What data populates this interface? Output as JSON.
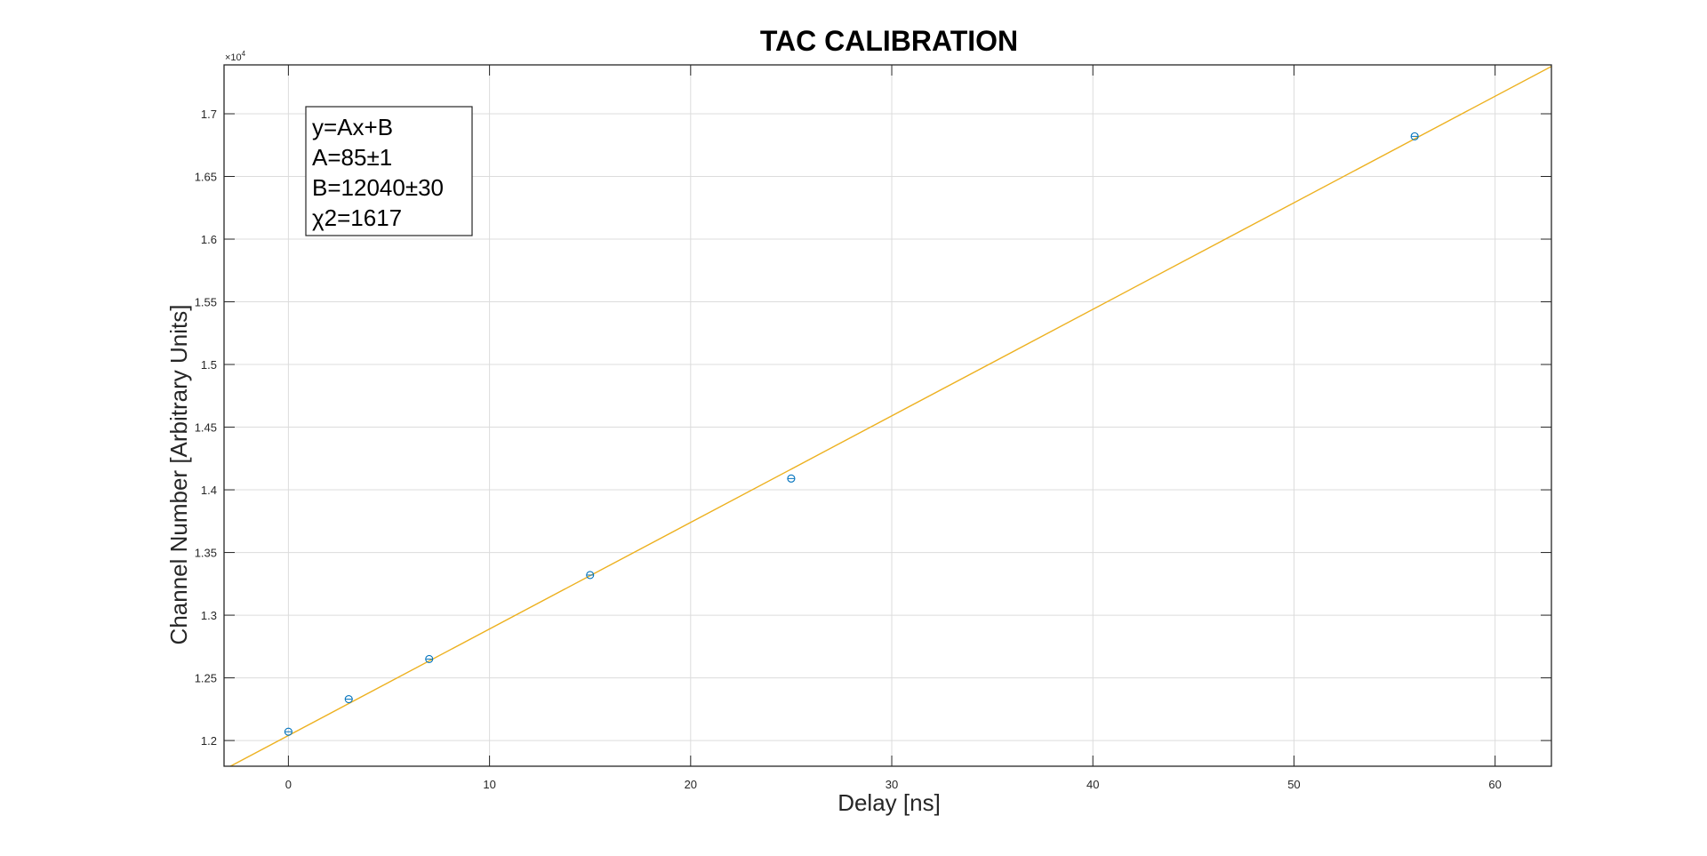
{
  "chart_data": {
    "type": "scatter",
    "title": "TAC CALIBRATION",
    "xlabel": "Delay [ns]",
    "ylabel": "Channel Number [Arbitrary Units]",
    "y_exponent_label": "×10",
    "y_exponent_power": "4",
    "xlim": [
      -3.2,
      62.8
    ],
    "ylim": [
      11795,
      17390
    ],
    "x_ticks": [
      0,
      10,
      20,
      30,
      40,
      50,
      60
    ],
    "x_tick_labels": [
      "0",
      "10",
      "20",
      "30",
      "40",
      "50",
      "60"
    ],
    "y_ticks": [
      12000,
      12500,
      13000,
      13500,
      14000,
      14500,
      15000,
      15500,
      16000,
      16500,
      17000
    ],
    "y_tick_labels": [
      "1.2",
      "1.25",
      "1.3",
      "1.35",
      "1.4",
      "1.45",
      "1.5",
      "1.55",
      "1.6",
      "1.65",
      "1.7"
    ],
    "grid": true,
    "points": {
      "x": [
        0,
        3,
        7,
        15,
        25,
        56
      ],
      "y": [
        12070,
        12330,
        12650,
        13320,
        14090,
        16820
      ],
      "color": "#0072BD",
      "marker": "circle"
    },
    "fit_line": {
      "slope": 85,
      "intercept": 12040,
      "color": "#EDB120"
    },
    "annotation": {
      "lines": [
        "y=Ax+B",
        "A=85±1",
        "B=12040±30",
        "χ2=1617"
      ],
      "position": "top-left"
    }
  }
}
